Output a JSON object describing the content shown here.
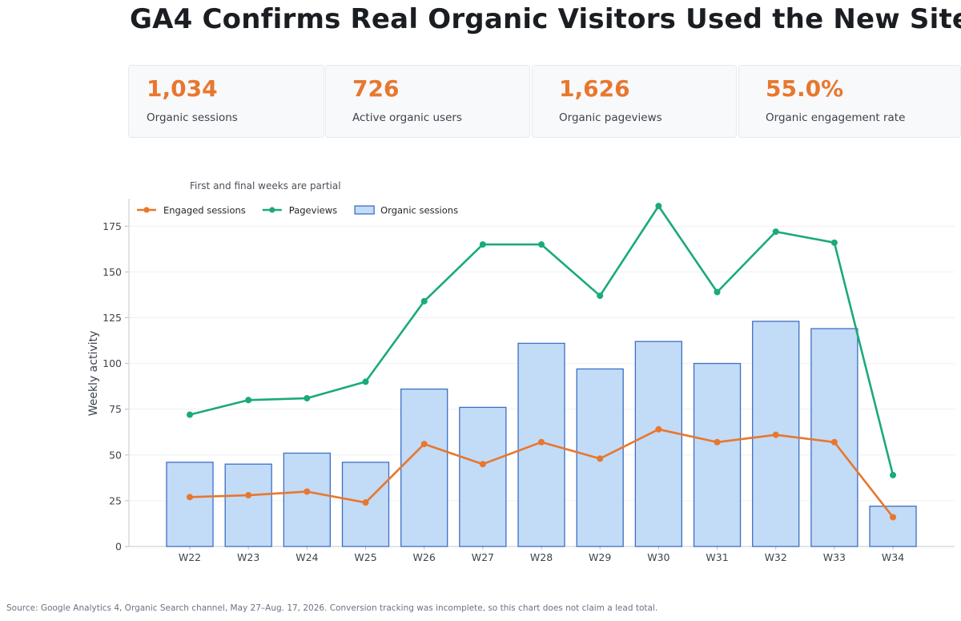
{
  "title": "GA4 Confirms Real Organic Visitors Used the New Site",
  "kpis": [
    {
      "value": "1,034",
      "label": "Organic sessions"
    },
    {
      "value": "726",
      "label": "Active organic users"
    },
    {
      "value": "1,626",
      "label": "Organic pageviews"
    },
    {
      "value": "55.0%",
      "label": "Organic engagement rate"
    }
  ],
  "colors": {
    "accent": "#e8772e",
    "engaged": "#e8772e",
    "pageviews": "#1aaa7b",
    "bar_fill": "#c2dbf7",
    "bar_stroke": "#3d6fc4"
  },
  "source": "Source: Google Analytics 4, Organic Search channel, May 27–Aug. 17, 2026. Conversion tracking was incomplete, so this chart does not claim a lead total.",
  "chart_data": {
    "type": "bar",
    "subtitle": "First and final weeks are partial",
    "ylabel": "Weekly activity",
    "xlabel": "",
    "ylim": [
      0,
      190
    ],
    "yticks": [
      0,
      25,
      50,
      75,
      100,
      125,
      150,
      175
    ],
    "grid": true,
    "legend_position": "top-left",
    "categories": [
      "W22",
      "W23",
      "W24",
      "W25",
      "W26",
      "W27",
      "W28",
      "W29",
      "W30",
      "W31",
      "W32",
      "W33",
      "W34"
    ],
    "series": [
      {
        "name": "Organic sessions",
        "kind": "bar",
        "values": [
          46,
          45,
          51,
          46,
          86,
          76,
          111,
          97,
          112,
          100,
          123,
          119,
          22
        ]
      },
      {
        "name": "Engaged sessions",
        "kind": "line",
        "values": [
          27,
          28,
          30,
          24,
          56,
          45,
          57,
          48,
          64,
          57,
          61,
          57,
          16
        ]
      },
      {
        "name": "Pageviews",
        "kind": "line",
        "values": [
          72,
          80,
          81,
          90,
          134,
          165,
          165,
          137,
          186,
          139,
          172,
          166,
          39
        ]
      }
    ],
    "legend_order": [
      "Engaged sessions",
      "Pageviews",
      "Organic sessions"
    ]
  }
}
